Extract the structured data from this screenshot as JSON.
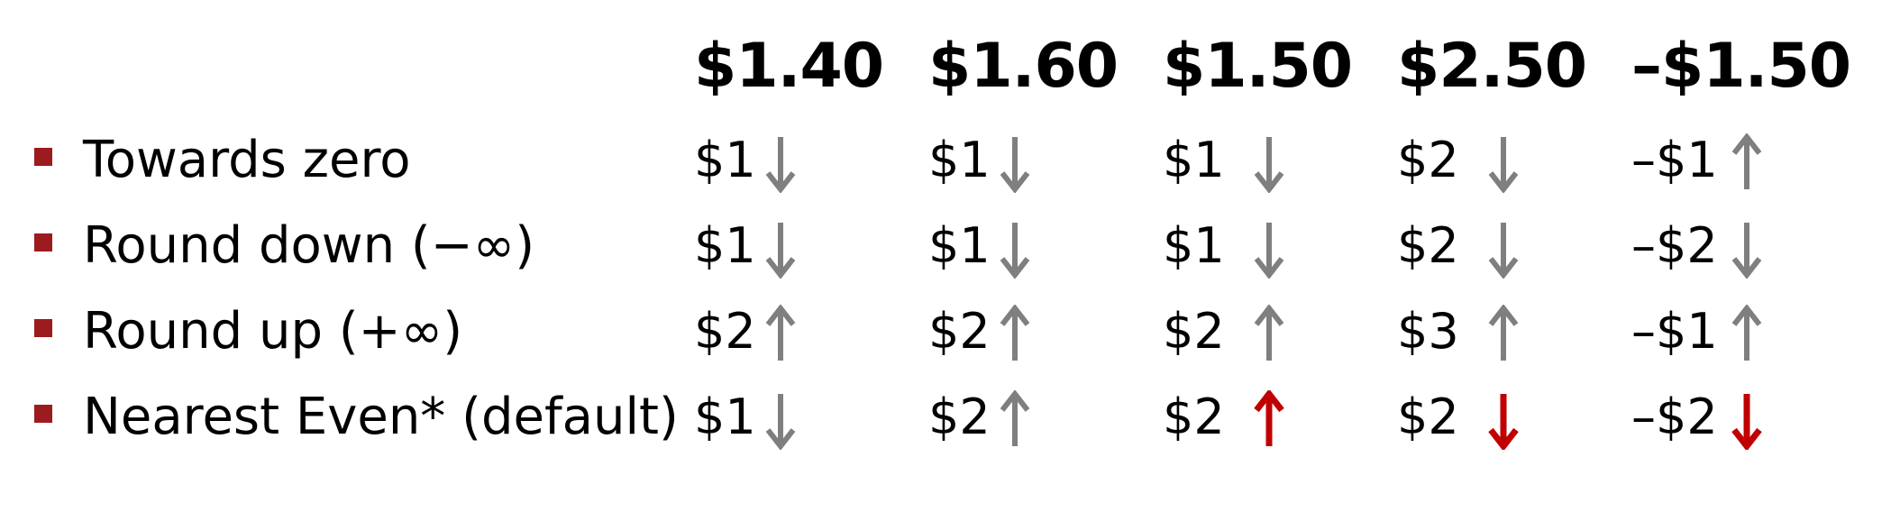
{
  "colors": {
    "bullet": "#9b1b1f",
    "arrow_gray": "#7f7f7f",
    "arrow_red": "#c00000"
  },
  "columns": [
    "$1.40",
    "$1.60",
    "$1.50",
    "$2.50",
    "–$1.50"
  ],
  "rows": [
    {
      "label": "Towards zero",
      "cells": [
        {
          "value": "$1",
          "arrow": "down",
          "color": "gray"
        },
        {
          "value": "$1",
          "arrow": "down",
          "color": "gray"
        },
        {
          "value": "$1",
          "arrow": "down",
          "color": "gray"
        },
        {
          "value": "$2",
          "arrow": "down",
          "color": "gray"
        },
        {
          "value": "–$1",
          "arrow": "up",
          "color": "gray"
        }
      ]
    },
    {
      "label": "Round down (−∞)",
      "cells": [
        {
          "value": "$1",
          "arrow": "down",
          "color": "gray"
        },
        {
          "value": "$1",
          "arrow": "down",
          "color": "gray"
        },
        {
          "value": "$1",
          "arrow": "down",
          "color": "gray"
        },
        {
          "value": "$2",
          "arrow": "down",
          "color": "gray"
        },
        {
          "value": "–$2",
          "arrow": "down",
          "color": "gray"
        }
      ]
    },
    {
      "label": "Round up (+∞)",
      "cells": [
        {
          "value": "$2",
          "arrow": "up",
          "color": "gray"
        },
        {
          "value": "$2",
          "arrow": "up",
          "color": "gray"
        },
        {
          "value": "$2",
          "arrow": "up",
          "color": "gray"
        },
        {
          "value": "$3",
          "arrow": "up",
          "color": "gray"
        },
        {
          "value": "–$1",
          "arrow": "up",
          "color": "gray"
        }
      ]
    },
    {
      "label": "Nearest Even* (default)",
      "cells": [
        {
          "value": "$1",
          "arrow": "down",
          "color": "gray"
        },
        {
          "value": "$2",
          "arrow": "up",
          "color": "gray"
        },
        {
          "value": "$2",
          "arrow": "up",
          "color": "red"
        },
        {
          "value": "$2",
          "arrow": "down",
          "color": "red"
        },
        {
          "value": "–$2",
          "arrow": "down",
          "color": "red"
        }
      ]
    }
  ]
}
